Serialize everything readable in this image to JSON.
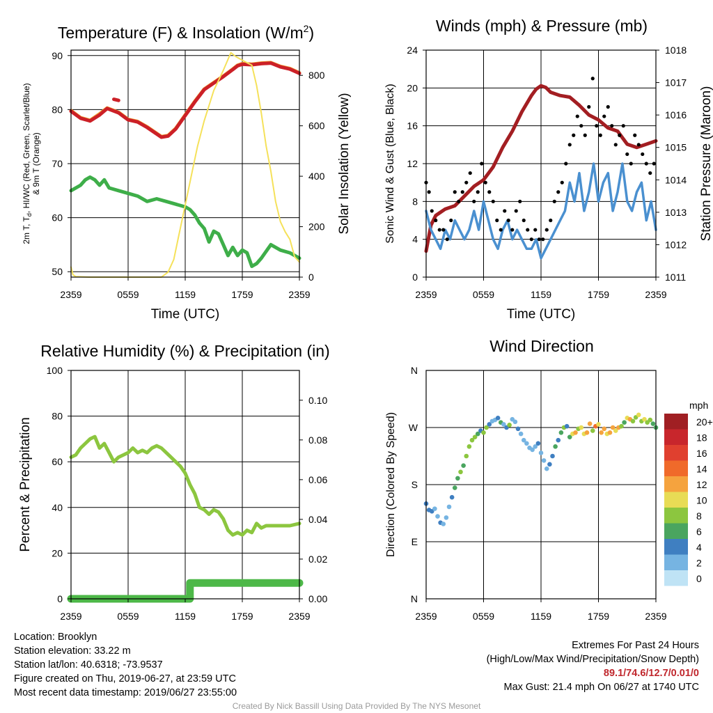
{
  "chart_data": [
    {
      "type": "line",
      "title": "Temperature (F) & Insolation (W/m²)",
      "title_main": "Temperature (F) & Insolation (W/m",
      "title_sup": "2",
      "title_end": ")",
      "xlabel": "Time (UTC)",
      "ylabel_line1": "2m T, T",
      "ylabel_sub": "d",
      "ylabel_line1_end": ", HI/WC (Red, Green, Scarlet/Blue)",
      "ylabel_line2": "& 9m T (Orange)",
      "y2label": "Solar Insolation (Yellow)",
      "x_ticks": [
        "2359",
        "0559",
        "1159",
        "1759",
        "2359"
      ],
      "ylim": [
        49,
        91
      ],
      "y_ticks": [
        50,
        60,
        70,
        80,
        90
      ],
      "y2lim": [
        0,
        900
      ],
      "y2_ticks": [
        0,
        200,
        400,
        600,
        800
      ],
      "x_hours_range": [
        0,
        24
      ],
      "grid": true,
      "series": [
        {
          "color": "#f0a030",
          "axis": "left",
          "x": [
            0,
            1,
            2,
            3,
            3.8,
            5,
            6,
            7,
            8,
            9.5,
            10.2,
            11,
            12,
            13,
            14,
            15,
            16,
            17,
            17.5,
            18,
            19,
            20,
            21,
            22,
            23,
            24
          ],
          "values": [
            79.8,
            78.5,
            78.0,
            79.2,
            80.3,
            79.5,
            78.2,
            77.8,
            76.8,
            75.0,
            75.2,
            76.5,
            79.0,
            81.5,
            83.8,
            85.0,
            86.2,
            87.5,
            88.2,
            88.5,
            88.4,
            88.6,
            88.7,
            88.0,
            87.6,
            86.8
          ]
        },
        {
          "color": "#cc2027",
          "axis": "left",
          "x": [
            0,
            1,
            2,
            3,
            3.8,
            5,
            6,
            7,
            8,
            9.5,
            10.2,
            11,
            12,
            13,
            14,
            15,
            16,
            17,
            17.5,
            18,
            19,
            20,
            21,
            22,
            23,
            24
          ],
          "values": [
            79.7,
            78.4,
            77.9,
            79.0,
            80.2,
            79.4,
            78.1,
            77.7,
            76.7,
            74.9,
            75.1,
            76.4,
            78.9,
            81.4,
            83.7,
            84.9,
            86.1,
            87.4,
            88.1,
            88.4,
            88.3,
            88.5,
            88.6,
            87.9,
            87.5,
            86.7
          ]
        },
        {
          "color": "#cc2027",
          "axis": "left",
          "x": [
            4.5,
            5.0
          ],
          "values": [
            81.9,
            81.7
          ]
        },
        {
          "color": "#3eae49",
          "axis": "left",
          "x": [
            0,
            1,
            1.5,
            2,
            2.5,
            3,
            3.5,
            4,
            5,
            6,
            7,
            8,
            9,
            10,
            11,
            12,
            12.5,
            13,
            13.5,
            14,
            14.5,
            15,
            15.5,
            16,
            16.5,
            17,
            17.5,
            18,
            18.5,
            19,
            19.5,
            20,
            21,
            22,
            23,
            24
          ],
          "values": [
            65.0,
            66.0,
            67.0,
            67.5,
            67.0,
            66.0,
            67.0,
            65.5,
            65.0,
            64.5,
            64.0,
            63.0,
            63.5,
            63.0,
            62.5,
            62.0,
            61.5,
            60.5,
            59.0,
            58.0,
            55.5,
            57.5,
            57.0,
            55.0,
            53.0,
            54.5,
            53.0,
            54.0,
            53.5,
            51.0,
            51.5,
            52.5,
            55.0,
            54.0,
            53.5,
            52.5
          ]
        },
        {
          "color": "#f5e15a",
          "axis": "right",
          "x": [
            0,
            0.2,
            0.5,
            2,
            4,
            6,
            8,
            9.5,
            10.2,
            10.8,
            11.3,
            11.8,
            12.3,
            12.8,
            13.3,
            14,
            15,
            16,
            16.8,
            17.3,
            18,
            19,
            19.5,
            20,
            20.5,
            21,
            21.5,
            22,
            22.5,
            23,
            23.5,
            24
          ],
          "values": [
            40,
            10,
            2,
            0,
            0,
            0,
            0,
            0,
            20,
            70,
            160,
            250,
            340,
            430,
            520,
            620,
            740,
            820,
            890,
            875,
            860,
            840,
            760,
            650,
            520,
            420,
            300,
            220,
            180,
            150,
            80,
            60
          ]
        }
      ]
    },
    {
      "type": "line",
      "title": "Winds (mph) & Pressure (mb)",
      "xlabel": "Time (UTC)",
      "ylabel": "Sonic Wind & Gust (Blue, Black)",
      "y2label": "Station Pressure (Maroon)",
      "x_ticks": [
        "2359",
        "0559",
        "1159",
        "1759",
        "2359"
      ],
      "ylim": [
        0,
        24
      ],
      "y_ticks": [
        0,
        4,
        8,
        12,
        16,
        20,
        24
      ],
      "y2lim": [
        1011,
        1018
      ],
      "y2_ticks": [
        1011,
        1012,
        1013,
        1014,
        1015,
        1016,
        1017,
        1018
      ],
      "x_hours_range": [
        0,
        24
      ],
      "grid": true,
      "series": [
        {
          "color": "#a31e22",
          "axis": "right",
          "name_hidden": "pressure",
          "x": [
            0,
            0.5,
            1,
            2,
            3,
            4,
            5,
            6,
            7,
            8,
            9,
            10,
            11,
            11.5,
            12,
            12.5,
            13,
            14,
            15,
            16,
            17,
            18,
            19,
            20,
            21,
            22,
            23,
            24
          ],
          "values": [
            1011.8,
            1012.6,
            1012.9,
            1013.1,
            1013.2,
            1013.5,
            1013.8,
            1014.0,
            1014.4,
            1015.0,
            1015.5,
            1016.1,
            1016.6,
            1016.8,
            1016.9,
            1016.85,
            1016.7,
            1016.6,
            1016.55,
            1016.3,
            1016.0,
            1015.85,
            1015.6,
            1015.5,
            1015.1,
            1015.0,
            1015.1,
            1015.2
          ]
        },
        {
          "color": "#4a90d0",
          "axis": "left",
          "name_hidden": "wind",
          "x": [
            0,
            0.5,
            1,
            1.5,
            2,
            2.5,
            3,
            3.5,
            4,
            4.5,
            5,
            5.5,
            6,
            6.5,
            7,
            7.5,
            8,
            8.5,
            9,
            9.5,
            10,
            10.5,
            11,
            11.5,
            12,
            12.5,
            13,
            13.5,
            14,
            14.5,
            15,
            15.5,
            16,
            16.5,
            17,
            17.5,
            18,
            18.5,
            19,
            19.5,
            20,
            20.5,
            21,
            21.5,
            22,
            22.5,
            23,
            23.5,
            24
          ],
          "values": [
            7,
            5,
            4,
            3,
            5,
            4,
            6,
            5,
            4,
            5,
            7,
            5,
            8,
            6,
            4,
            3,
            5,
            6,
            4,
            5,
            4,
            3,
            3,
            4,
            2,
            3,
            4,
            5,
            6,
            7,
            10,
            8,
            11,
            7,
            9,
            12,
            8,
            10,
            11,
            7,
            9,
            12,
            8,
            7,
            9,
            10,
            6,
            8,
            5
          ]
        },
        {
          "color": "#000000",
          "axis": "left",
          "name_hidden": "gust",
          "style": "dots",
          "x": [
            0,
            0.3,
            0.6,
            1,
            1.4,
            1.8,
            2.2,
            2.6,
            3,
            3.4,
            3.8,
            4.2,
            4.6,
            5,
            5.4,
            5.8,
            6.2,
            6.6,
            7,
            7.4,
            7.8,
            8.2,
            8.6,
            9,
            9.4,
            9.8,
            10.2,
            10.6,
            11,
            11.4,
            11.8,
            12.2,
            12.6,
            13,
            13.4,
            13.8,
            14.2,
            14.6,
            15,
            15.4,
            15.8,
            16.2,
            16.6,
            17,
            17.4,
            17.8,
            18.2,
            18.6,
            19,
            19.4,
            19.8,
            20.2,
            20.6,
            21,
            21.4,
            21.8,
            22.2,
            22.6,
            23,
            23.4,
            23.8
          ],
          "values": [
            10,
            9,
            7,
            6,
            5,
            5,
            4,
            6,
            9,
            8,
            9,
            10,
            11,
            8,
            9,
            12,
            10,
            9,
            8,
            6,
            5,
            7,
            6,
            5,
            7,
            8,
            6,
            5,
            4,
            5,
            4,
            4,
            5,
            6,
            8,
            9,
            10,
            12,
            14,
            15,
            17,
            16,
            15,
            18,
            21,
            16,
            15,
            17,
            18,
            16,
            14,
            15,
            16,
            13,
            12,
            15,
            14,
            13,
            12,
            11,
            12
          ]
        }
      ]
    },
    {
      "type": "line",
      "title": "Relative Humidity (%) & Precipitation (in)",
      "xlabel": "",
      "ylabel": "Percent & Precipitation",
      "x_ticks": [
        "2359",
        "0559",
        "1159",
        "1759",
        "2359"
      ],
      "ylim": [
        0,
        100
      ],
      "y_ticks": [
        0,
        20,
        40,
        60,
        80,
        100
      ],
      "y2lim": [
        0,
        0.115
      ],
      "y2_ticks": [
        "0.00",
        "0.02",
        "0.04",
        "0.06",
        "0.08",
        "0.10"
      ],
      "x_hours_range": [
        0,
        24
      ],
      "grid": true,
      "series": [
        {
          "color": "#8cc63f",
          "axis": "left",
          "name_hidden": "rh",
          "x": [
            0,
            0.5,
            1,
            1.5,
            2,
            2.5,
            3,
            3.5,
            4,
            4.5,
            5,
            5.5,
            6,
            6.5,
            7,
            7.5,
            8,
            8.5,
            9,
            9.5,
            10,
            10.5,
            11,
            11.5,
            12,
            12.5,
            13,
            13.5,
            14,
            14.5,
            15,
            15.5,
            16,
            16.5,
            17,
            17.5,
            18,
            18.5,
            19,
            19.5,
            20,
            20.5,
            21,
            22,
            23,
            24
          ],
          "values": [
            62,
            63,
            66,
            68,
            70,
            71,
            66,
            68,
            64,
            60,
            62,
            63,
            64,
            66,
            64,
            65,
            64,
            66,
            67,
            66,
            64,
            62,
            60,
            58,
            55,
            50,
            46,
            40,
            39,
            37,
            39,
            38,
            35,
            30,
            28,
            29,
            28,
            30,
            29,
            33,
            31,
            32,
            32,
            32,
            32,
            33
          ]
        },
        {
          "color": "#4db848",
          "axis": "right",
          "name_hidden": "precip",
          "style": "step",
          "x": [
            0,
            12.5,
            12.5,
            24
          ],
          "values": [
            0.0,
            0.0,
            0.008,
            0.008
          ]
        }
      ]
    },
    {
      "type": "scatter",
      "title": "Wind Direction",
      "ylabel": "Direction (Colored By Speed)",
      "x_ticks": [
        "2359",
        "0559",
        "1159",
        "1759",
        "2359"
      ],
      "y_ticks": [
        "N",
        "E",
        "S",
        "W",
        "N"
      ],
      "ylim": [
        0,
        360
      ],
      "x_hours_range": [
        0,
        24
      ],
      "grid": true,
      "legend_title": "mph",
      "legend_labels": [
        "20+",
        "18",
        "16",
        "14",
        "12",
        "10",
        "8",
        "6",
        "4",
        "2",
        "0"
      ],
      "legend_colors": [
        "#a01f23",
        "#c8262c",
        "#e0402f",
        "#f06a2a",
        "#f5a33e",
        "#e8dc55",
        "#8cc63f",
        "#4aa55f",
        "#3f7fc1",
        "#76b4e2",
        "#bfe3f5"
      ],
      "points": {
        "x": [
          0,
          0.3,
          0.6,
          0.9,
          1.2,
          1.5,
          1.8,
          2.1,
          2.4,
          2.7,
          3.0,
          3.3,
          3.6,
          3.9,
          4.2,
          4.5,
          4.8,
          5.1,
          5.4,
          5.7,
          6.0,
          6.3,
          6.6,
          6.9,
          7.2,
          7.5,
          7.8,
          8.1,
          8.4,
          8.7,
          9.0,
          9.3,
          9.6,
          9.9,
          10.2,
          10.5,
          10.8,
          11.1,
          11.4,
          11.7,
          12.0,
          12.3,
          12.6,
          12.9,
          13.2,
          13.5,
          13.8,
          14.1,
          14.4,
          14.7,
          15.0,
          15.3,
          15.6,
          15.9,
          16.2,
          16.5,
          16.8,
          17.1,
          17.4,
          17.7,
          18.0,
          18.3,
          18.6,
          18.9,
          19.2,
          19.5,
          19.8,
          20.1,
          20.4,
          20.7,
          21.0,
          21.3,
          21.6,
          21.9,
          22.2,
          22.5,
          22.8,
          23.1,
          23.4,
          23.7,
          24.0
        ],
        "y": [
          150,
          140,
          138,
          142,
          130,
          120,
          118,
          128,
          145,
          160,
          175,
          190,
          200,
          210,
          225,
          240,
          250,
          255,
          260,
          265,
          262,
          270,
          275,
          280,
          282,
          285,
          278,
          275,
          270,
          274,
          283,
          279,
          268,
          260,
          250,
          245,
          238,
          235,
          240,
          245,
          230,
          218,
          205,
          212,
          225,
          240,
          250,
          262,
          270,
          272,
          255,
          260,
          262,
          268,
          270,
          260,
          262,
          276,
          265,
          272,
          275,
          262,
          268,
          260,
          262,
          270,
          265,
          270,
          272,
          278,
          285,
          283,
          280,
          286,
          290,
          280,
          283,
          278,
          282,
          276,
          270
        ],
        "speed": [
          4,
          4,
          3,
          2,
          2,
          3,
          2,
          2,
          2,
          3,
          6,
          6,
          7,
          6,
          8,
          7,
          8,
          8,
          6,
          4,
          7,
          8,
          4,
          2,
          2,
          4,
          6,
          2,
          4,
          7,
          2,
          2,
          4,
          2,
          2,
          2,
          2,
          2,
          2,
          3,
          2,
          2,
          2,
          3,
          4,
          6,
          4,
          6,
          8,
          4,
          6,
          10,
          12,
          8,
          9,
          10,
          11,
          12,
          7,
          13,
          10,
          11,
          12,
          9,
          11,
          12,
          10,
          11,
          8,
          6,
          10,
          11,
          8,
          7,
          9,
          8,
          10,
          7,
          8,
          6,
          5
        ]
      }
    }
  ],
  "info_left": {
    "location": "Location: Brooklyn",
    "elevation": "Station elevation: 33.22 m",
    "latlon": "Station lat/lon: 40.6318; -73.9537",
    "created": "Figure created on Thu, 2019-06-27, at 23:59 UTC",
    "recent": "Most recent data timestamp: 2019/06/27 23:55:00"
  },
  "info_right": {
    "heading": "Extremes For Past 24 Hours",
    "subheading": "(High/Low/Max Wind/Precipitation/Snow Depth)",
    "values": "89.1/74.6/12.7/0.01/0",
    "max_gust": "Max Gust: 21.4 mph On 06/27 at 1740 UTC"
  },
  "credit": "Created By Nick Bassill Using Data Provided By The NYS Mesonet"
}
